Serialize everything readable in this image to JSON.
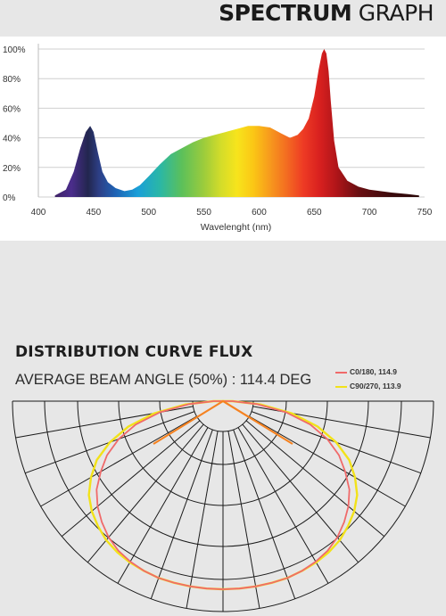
{
  "spectrum_title": {
    "bold": "SPECTRUM",
    "light": "GRAPH"
  },
  "distribution": {
    "title": "DISTRIBUTION CURVE FLUX",
    "beam_angle_text": "AVERAGE BEAM ANGLE  (50%) : 114.4 DEG"
  },
  "colors": {
    "page_bg": "#e7e7e7",
    "c0_curve": "#f06a6a",
    "c90_curve": "#f2e21a",
    "apex_orange": "#f58220",
    "grid": "#1a1a1a"
  },
  "chart_data": [
    {
      "type": "area",
      "title": "SPECTRUM GRAPH",
      "xlabel": "Wavelenght (nm)",
      "ylabel": "",
      "xlim": [
        400,
        750
      ],
      "ylim": [
        0,
        100
      ],
      "x_ticks": [
        400,
        450,
        500,
        550,
        600,
        650,
        700,
        750
      ],
      "y_ticks": [
        "0%",
        "20%",
        "40%",
        "60%",
        "80%",
        "100%"
      ],
      "grid": true,
      "fill": "spectral rainbow gradient by wavelength",
      "x": [
        415,
        425,
        432,
        438,
        443,
        447,
        450,
        454,
        458,
        463,
        470,
        478,
        485,
        492,
        500,
        510,
        520,
        530,
        540,
        550,
        560,
        570,
        580,
        590,
        600,
        610,
        620,
        628,
        635,
        640,
        645,
        650,
        654,
        657,
        659,
        661,
        663,
        665,
        668,
        672,
        680,
        690,
        700,
        710,
        720,
        735,
        745
      ],
      "y": [
        1,
        5,
        17,
        33,
        44,
        48,
        44,
        30,
        17,
        10,
        6,
        4,
        5,
        8,
        14,
        22,
        29,
        33,
        37,
        40,
        42,
        44,
        46,
        48,
        48,
        47,
        43,
        40,
        42,
        46,
        53,
        68,
        86,
        97,
        100,
        97,
        85,
        65,
        38,
        20,
        11,
        7,
        5,
        4,
        3,
        2,
        1
      ]
    },
    {
      "type": "line",
      "title": "DISTRIBUTION CURVE FLUX",
      "polar": true,
      "angle_range_deg": [
        -90,
        90
      ],
      "beam_angle_deg": 114.4,
      "legend_placement": "top-right",
      "series": [
        {
          "name": "C0/180, 114.9",
          "angles_deg": [
            -90,
            -85,
            -80,
            -75,
            -70,
            -65,
            -60,
            -55,
            -50,
            -45,
            -40,
            -35,
            -30,
            -25,
            -20,
            -15,
            -10,
            -5,
            0,
            5,
            10,
            15,
            20,
            25,
            30,
            35,
            40,
            45,
            50,
            55,
            60,
            65,
            70,
            75,
            80,
            85,
            90
          ],
          "values": [
            0.05,
            0.18,
            0.34,
            0.48,
            0.59,
            0.68,
            0.75,
            0.82,
            0.87,
            0.91,
            0.945,
            0.97,
            0.985,
            0.995,
            1.0,
            1.0,
            1.0,
            1.0,
            1.0,
            1.0,
            1.0,
            1.0,
            1.0,
            0.995,
            0.985,
            0.97,
            0.945,
            0.91,
            0.87,
            0.82,
            0.75,
            0.68,
            0.59,
            0.48,
            0.34,
            0.18,
            0.05
          ]
        },
        {
          "name": "C90/270, 113.9",
          "angles_deg": [
            -90,
            -85,
            -80,
            -75,
            -70,
            -65,
            -60,
            -55,
            -50,
            -45,
            -40,
            -35,
            -30,
            -25,
            -20,
            -15,
            -10,
            -5,
            0,
            5,
            10,
            15,
            20,
            25,
            30,
            35,
            40,
            45,
            50,
            55,
            60,
            65,
            70,
            75,
            80,
            85,
            90
          ],
          "values": [
            0.05,
            0.2,
            0.37,
            0.52,
            0.64,
            0.74,
            0.81,
            0.87,
            0.91,
            0.94,
            0.965,
            0.98,
            0.99,
            0.995,
            1.0,
            1.0,
            1.0,
            1.0,
            1.0,
            1.0,
            1.0,
            1.0,
            1.0,
            0.995,
            0.99,
            0.98,
            0.965,
            0.94,
            0.91,
            0.87,
            0.81,
            0.74,
            0.64,
            0.52,
            0.37,
            0.2,
            0.05
          ]
        }
      ]
    }
  ]
}
